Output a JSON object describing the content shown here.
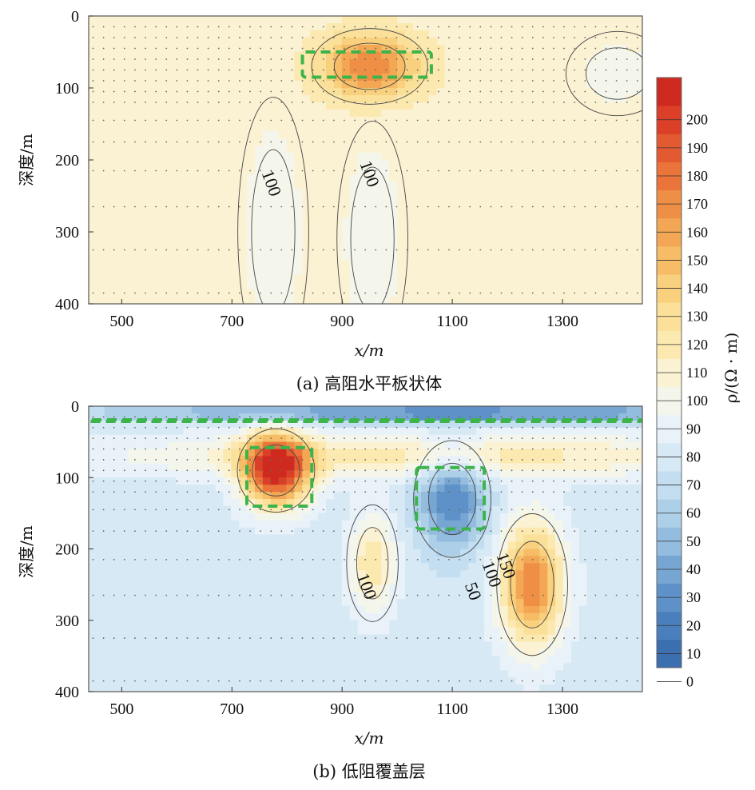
{
  "chart_data": {
    "colorbar": {
      "label": "ρ/(Ω · m)",
      "min": 0,
      "max": 210,
      "ticks": [
        0,
        10,
        20,
        30,
        40,
        50,
        60,
        70,
        80,
        90,
        100,
        110,
        120,
        130,
        140,
        150,
        160,
        170,
        180,
        190,
        200
      ],
      "colors": [
        "#3c6fb0",
        "#4a7fbd",
        "#5e91c8",
        "#77a6d3",
        "#93bcdf",
        "#add0e8",
        "#c3def0",
        "#d7e9f5",
        "#e8f2f8",
        "#f4f6ec",
        "#fbf2d3",
        "#fbe9b0",
        "#fbe09a",
        "#f8d07e",
        "#f6bc66",
        "#f3a653",
        "#ef8f45",
        "#ea7439",
        "#e45a30",
        "#db3f27",
        "#cf2a20"
      ]
    },
    "panels": [
      {
        "id": "a",
        "type": "heatmap",
        "caption": "(a) 高阻水平板状体",
        "ylabel": "深度/m",
        "xlabel": "x/m",
        "x_ticks": [
          500,
          700,
          900,
          1100,
          1300
        ],
        "y_ticks": [
          0,
          100,
          200,
          300,
          400
        ],
        "xlim": [
          440,
          1445
        ],
        "ylim": [
          0,
          400
        ],
        "background_value": 104,
        "anomalies": [
          {
            "x": 950,
            "depth": 70,
            "sx": 90,
            "sy": 45,
            "value": 170
          },
          {
            "x": 775,
            "depth": 300,
            "sx": 55,
            "sy": 160,
            "value": 95
          },
          {
            "x": 955,
            "depth": 310,
            "sx": 55,
            "sy": 140,
            "value": 95
          },
          {
            "x": 1400,
            "depth": 80,
            "sx": 80,
            "sy": 50,
            "value": 97
          }
        ],
        "contour_labels": [
          {
            "text": "100",
            "x": 762,
            "depth": 235
          },
          {
            "text": "100",
            "x": 940,
            "depth": 222
          }
        ],
        "target_box": {
          "x0": 828,
          "x1": 1062,
          "depth0": 50,
          "depth1": 85
        }
      },
      {
        "id": "b",
        "type": "heatmap",
        "caption": "(b) 低阻覆盖层",
        "ylabel": "深度/m",
        "xlabel": "x/m",
        "x_ticks": [
          500,
          700,
          900,
          1100,
          1300
        ],
        "y_ticks": [
          0,
          100,
          200,
          300,
          400
        ],
        "xlim": [
          440,
          1445
        ],
        "ylim": [
          0,
          400
        ],
        "background_value": 75,
        "anomalies": [
          {
            "x": 780,
            "depth": 90,
            "sx": 60,
            "sy": 50,
            "value": 205
          },
          {
            "x": 1100,
            "depth": 130,
            "sx": 60,
            "sy": 70,
            "value": 20
          },
          {
            "x": 1245,
            "depth": 250,
            "sx": 55,
            "sy": 85,
            "value": 170
          },
          {
            "x": 955,
            "depth": 220,
            "sx": 40,
            "sy": 70,
            "value": 120
          },
          {
            "x": 1100,
            "depth": 10,
            "sx": 600,
            "sy": 12,
            "value": 20
          },
          {
            "x": 1100,
            "depth": 70,
            "sx": 600,
            "sy": 30,
            "value": 115
          }
        ],
        "contour_labels": [
          {
            "text": "100",
            "x": 935,
            "depth": 255
          },
          {
            "text": "50",
            "x": 1128,
            "depth": 262
          },
          {
            "text": "100",
            "x": 1162,
            "depth": 238
          },
          {
            "text": "150",
            "x": 1188,
            "depth": 226
          }
        ],
        "target_boxes": [
          {
            "x0": 727,
            "x1": 845,
            "depth0": 58,
            "depth1": 140
          },
          {
            "x0": 1035,
            "x1": 1158,
            "depth0": 86,
            "depth1": 172
          },
          {
            "x0": 440,
            "x1": 1445,
            "depth0": 19,
            "depth1": 21
          }
        ]
      }
    ]
  }
}
